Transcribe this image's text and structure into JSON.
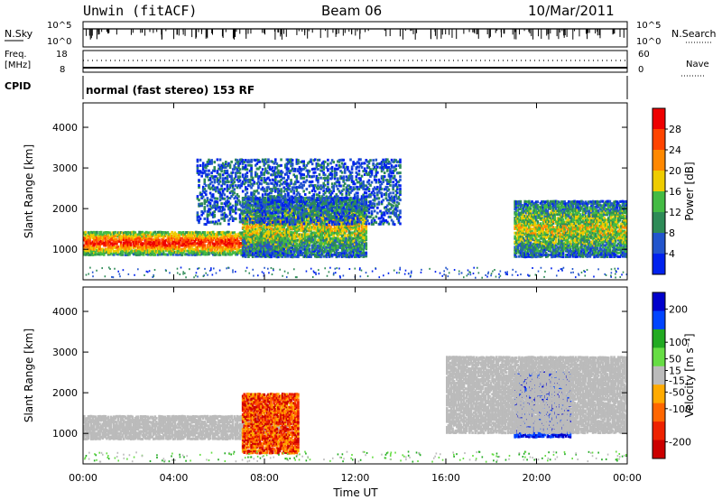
{
  "header": {
    "station": "Unwin (fitACF)",
    "beam": "Beam 06",
    "date": "10/Mar/2011"
  },
  "housekeeping": {
    "nsky_label": "N.Sky",
    "nsky_ticks": [
      "10^5",
      "10^0"
    ],
    "nsearch_label": "N.Search",
    "freq_label": "Freq.",
    "freq_unit": "[MHz]",
    "freq_ticks": [
      "18",
      "8"
    ],
    "nave_ticks": [
      "60",
      "0"
    ],
    "nave_label": "Nave",
    "cpid_label": "CPID",
    "cpid_text": "normal (fast stereo) 153 RF"
  },
  "colors": {
    "power": [
      "#0022ee",
      "#2255cc",
      "#2e8b57",
      "#44bb44",
      "#eecc00",
      "#ff8800",
      "#ff4400",
      "#ee0000"
    ],
    "velocity": [
      "#0000cc",
      "#0044ff",
      "#22aa22",
      "#66dd44",
      "#bbbbbb",
      "#ffaa00",
      "#ff6600",
      "#ee2200",
      "#cc0000"
    ]
  },
  "chart_data": [
    {
      "type": "heatmap",
      "name": "power-panel",
      "xlabel": "",
      "ylabel": "Slant Range [km]",
      "y_ticks": [
        1000,
        2000,
        3000,
        4000
      ],
      "ylim": [
        250,
        4600
      ],
      "xlim": [
        "00:00",
        "24:00"
      ],
      "colorbar": {
        "label": "Power [dB]",
        "ticks": [
          4,
          8,
          12,
          16,
          20,
          24,
          28
        ],
        "range": [
          0,
          32
        ]
      },
      "regions": [
        {
          "t0": 0.0,
          "t1": 9.0,
          "r0": 850,
          "r1": 1450,
          "level": "high"
        },
        {
          "t0": 7.0,
          "t1": 12.5,
          "r0": 800,
          "r1": 2300,
          "level": "mid"
        },
        {
          "t0": 5.0,
          "t1": 14.0,
          "r0": 1600,
          "r1": 3200,
          "level": "low"
        },
        {
          "t0": 19.0,
          "t1": 24.0,
          "r0": 800,
          "r1": 2200,
          "level": "mid"
        }
      ]
    },
    {
      "type": "heatmap",
      "name": "velocity-panel",
      "xlabel": "Time UT",
      "ylabel": "Slant Range [km]",
      "x_ticks": [
        "00:00",
        "04:00",
        "08:00",
        "12:00",
        "16:00",
        "20:00",
        "00:00"
      ],
      "y_ticks": [
        1000,
        2000,
        3000,
        4000
      ],
      "ylim": [
        250,
        4600
      ],
      "colorbar": {
        "label": "Velocity [m s⁻¹]",
        "ticks": [
          200,
          100,
          50,
          15,
          -15,
          -50,
          -100,
          -200
        ],
        "range": [
          -250,
          250
        ]
      },
      "regions": [
        {
          "t0": 0.0,
          "t1": 9.0,
          "r0": 850,
          "r1": 1450,
          "level": "ground"
        },
        {
          "t0": 7.0,
          "t1": 9.5,
          "r0": 500,
          "r1": 2000,
          "level": "negative"
        },
        {
          "t0": 19.0,
          "t1": 21.5,
          "r0": 900,
          "r1": 2500,
          "level": "positive"
        },
        {
          "t0": 16.0,
          "t1": 24.0,
          "r0": 1000,
          "r1": 2900,
          "level": "ground"
        }
      ]
    }
  ]
}
